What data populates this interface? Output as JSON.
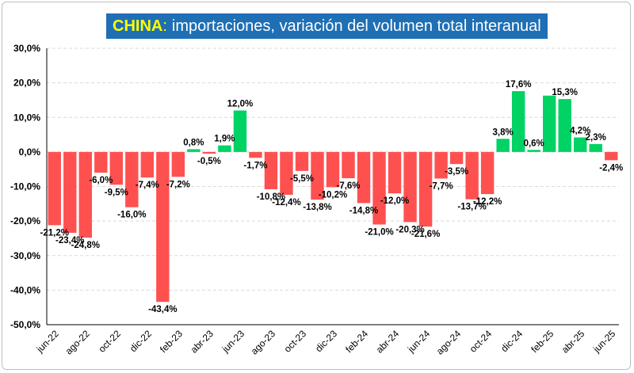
{
  "title": {
    "bold": "CHINA",
    "colon": ":",
    "rest": "importaciones, variación del volumen total interanual"
  },
  "colors": {
    "negative": "#ff5050",
    "positive": "#00d264",
    "title_bg": "#1f6fb5",
    "title_accent": "#ffff00",
    "grid": "#d9d9d9"
  },
  "chart_data": {
    "type": "bar",
    "title": "CHINA: importaciones, variación del volumen total interanual",
    "xlabel": "",
    "ylabel": "",
    "ylim": [
      -50,
      30
    ],
    "yticks": [
      -50,
      -40,
      -30,
      -20,
      -10,
      0,
      10,
      20,
      30
    ],
    "ytick_labels": [
      "-50,0%",
      "-40,0%",
      "-30,0%",
      "-20,0%",
      "-10,0%",
      "0,0%",
      "10,0%",
      "20,0%",
      "30,0%"
    ],
    "grid": "horizontal dashed",
    "categories": [
      "jun-22",
      "jul-22",
      "ago-22",
      "sep-22",
      "oct-22",
      "nov-22",
      "dic-22",
      "ene-23",
      "feb-23",
      "mar-23",
      "abr-23",
      "may-23",
      "jun-23",
      "jul-23",
      "ago-23",
      "sep-23",
      "oct-23",
      "nov-23",
      "dic-23",
      "ene-24",
      "feb-24",
      "mar-24",
      "abr-24",
      "may-24",
      "jun-24",
      "jul-24",
      "ago-24",
      "sep-24",
      "oct-24",
      "nov-24",
      "dic-24",
      "ene-25",
      "feb-25",
      "mar-25",
      "abr-25",
      "may-25",
      "jun-25"
    ],
    "x_tick_labels": [
      "jun-22",
      "ago-22",
      "oct-22",
      "dic-22",
      "feb-23",
      "abr-23",
      "jun-23",
      "ago-23",
      "oct-23",
      "dic-23",
      "feb-24",
      "abr-24",
      "jun-24",
      "ago-24",
      "oct-24",
      "dic-24",
      "feb-25",
      "abr-25",
      "jun-25"
    ],
    "values": [
      -21.2,
      -23.4,
      -24.8,
      -6.0,
      -9.5,
      -16.0,
      -7.4,
      -43.4,
      -7.2,
      0.8,
      -0.5,
      1.9,
      12.0,
      -1.7,
      -10.8,
      -12.4,
      -5.5,
      -13.8,
      -10.2,
      -7.6,
      -14.8,
      -21.0,
      -12.0,
      -20.3,
      -21.6,
      -7.7,
      -3.5,
      -13.7,
      -12.2,
      3.8,
      17.6,
      0.6,
      16.3,
      15.3,
      4.2,
      2.3,
      -2.4
    ],
    "labels": [
      "-21,2%",
      "-23,4%",
      "-24,8%",
      "-6,0%",
      "-9,5%",
      "-16,0%",
      "-7,4%",
      "-43,4%",
      "-7,2%",
      "0,8%",
      "-0,5%",
      "1,9%",
      "12,0%",
      "-1,7%",
      "-10,8%",
      "-12,4%",
      "-5,5%",
      "-13,8%",
      "-10,2%",
      "-7,6%",
      "-14,8%",
      "-21,0%",
      "-12,0%",
      "-20,3%",
      "-21,6%",
      "-7,7%",
      "-3,5%",
      "-13,7%",
      "-12,2%",
      "3,8%",
      "17,6%",
      "0,6%",
      "",
      "15,3%",
      "4,2%",
      "2,3%",
      "-2,4%"
    ]
  }
}
